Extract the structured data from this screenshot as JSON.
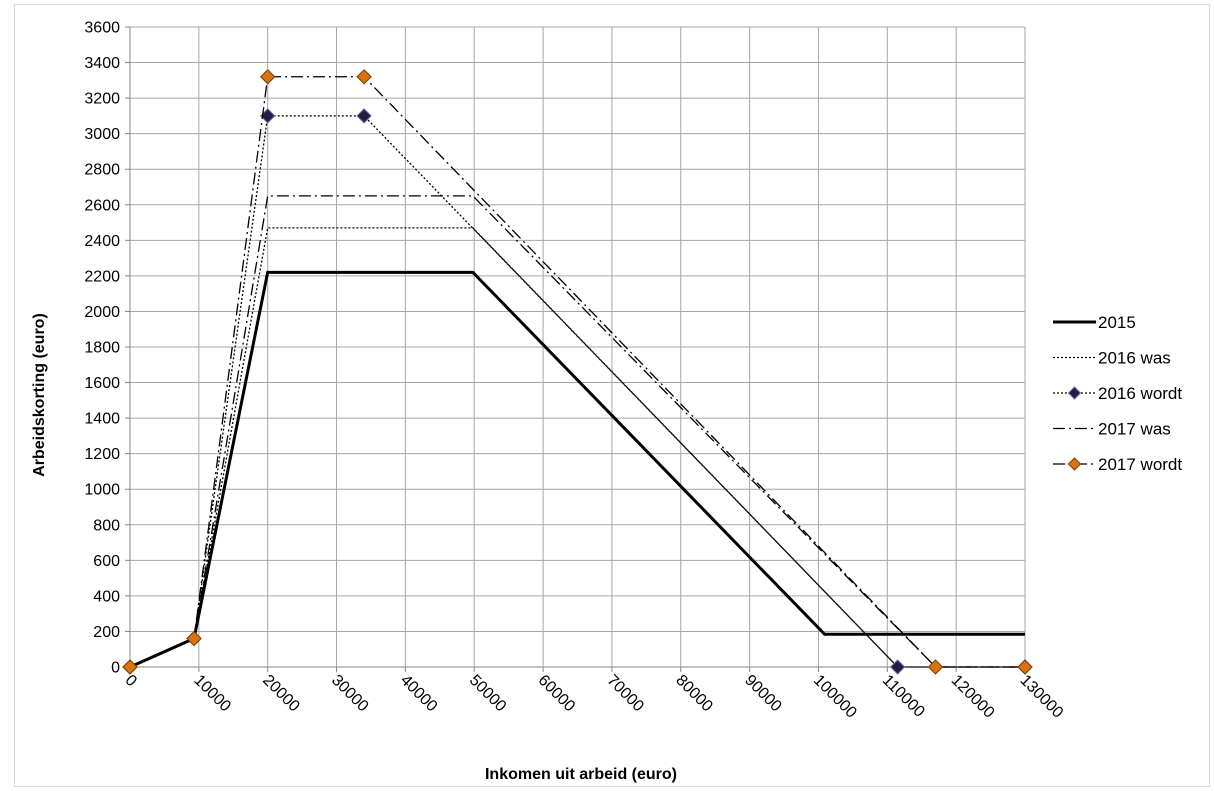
{
  "chart_data": {
    "type": "line",
    "title": "",
    "xlabel": "Inkomen uit arbeid (euro)",
    "ylabel": "Arbeidskorting (euro)",
    "xlim": [
      0,
      130000
    ],
    "ylim": [
      0,
      3600
    ],
    "x_ticks": [
      "0",
      "10000",
      "20000",
      "30000",
      "40000",
      "50000",
      "60000",
      "70000",
      "80000",
      "90000",
      "100000",
      "110000",
      "120000",
      "130000"
    ],
    "y_ticks": [
      "0",
      "200",
      "400",
      "600",
      "800",
      "1000",
      "1200",
      "1400",
      "1600",
      "1800",
      "2000",
      "2200",
      "2400",
      "2600",
      "2800",
      "3000",
      "3200",
      "3400",
      "3600"
    ],
    "grid": true,
    "legend_position": "right",
    "series": [
      {
        "name": "2015",
        "style": "solid",
        "color": "#000000",
        "marker": "none",
        "points": [
          [
            0,
            0
          ],
          [
            9300,
            160
          ],
          [
            20000,
            2220
          ],
          [
            49800,
            2220
          ],
          [
            100900,
            184
          ],
          [
            130000,
            184
          ]
        ]
      },
      {
        "name": "2016 was",
        "style": "dotted",
        "color": "#000000",
        "marker": "none",
        "points": [
          [
            0,
            0
          ],
          [
            9300,
            160
          ],
          [
            20000,
            2470
          ],
          [
            49800,
            2470
          ],
          [
            111500,
            0
          ],
          [
            130000,
            0
          ]
        ]
      },
      {
        "name": "2016 wordt",
        "style": "dotted",
        "color": "#000000",
        "marker": "diamond",
        "marker_fill": "#1f1f3f",
        "marker_edge": "#6a6ab5",
        "points": [
          [
            0,
            0
          ],
          [
            9300,
            160
          ],
          [
            20000,
            3100
          ],
          [
            34000,
            3100
          ],
          [
            111500,
            0
          ],
          [
            130000,
            0
          ]
        ]
      },
      {
        "name": "2017 was",
        "style": "dashdot",
        "color": "#000000",
        "marker": "none",
        "points": [
          [
            0,
            0
          ],
          [
            9300,
            160
          ],
          [
            20000,
            2650
          ],
          [
            49800,
            2650
          ],
          [
            117000,
            0
          ],
          [
            130000,
            0
          ]
        ]
      },
      {
        "name": "2017 wordt",
        "style": "dashdot",
        "color": "#000000",
        "marker": "diamond",
        "marker_fill": "#d9730d",
        "marker_edge": "#7a3c05",
        "points": [
          [
            0,
            0
          ],
          [
            9300,
            160
          ],
          [
            20000,
            3320
          ],
          [
            34000,
            3320
          ],
          [
            117000,
            0
          ],
          [
            130000,
            0
          ]
        ]
      }
    ]
  }
}
